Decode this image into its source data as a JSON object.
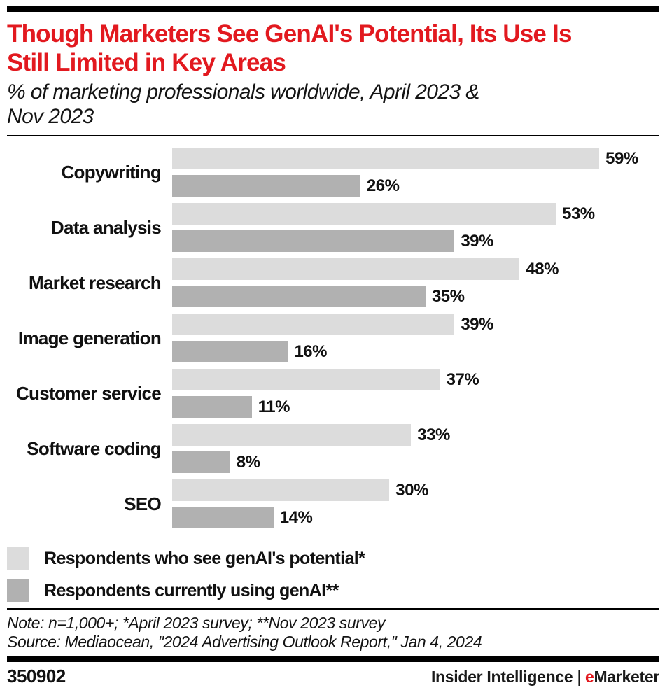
{
  "colors": {
    "accent_red": "#e2191f",
    "bar_light": "#dcdcdc",
    "bar_dark": "#b1b1b1",
    "text": "#111111",
    "rule": "#000000"
  },
  "header": {
    "title_line1": "Though Marketers See GenAI's Potential, Its Use Is",
    "title_line2": "Still Limited in Key Areas",
    "subtitle_line1": "% of marketing professionals worldwide, April 2023 &",
    "subtitle_line2": "Nov 2023"
  },
  "chart_data": {
    "type": "bar",
    "orientation": "horizontal",
    "title": "Though Marketers See GenAI's Potential, Its Use Is Still Limited in Key Areas",
    "subtitle": "% of marketing professionals worldwide, April 2023 & Nov 2023",
    "categories": [
      "Copywriting",
      "Data analysis",
      "Market research",
      "Image generation",
      "Customer service",
      "Software coding",
      "SEO"
    ],
    "series": [
      {
        "name": "Respondents who see genAI's potential*",
        "color": "#dcdcdc",
        "values": [
          59,
          53,
          48,
          39,
          37,
          33,
          30
        ]
      },
      {
        "name": "Respondents currently using genAI**",
        "color": "#b1b1b1",
        "values": [
          26,
          39,
          35,
          16,
          11,
          8,
          14
        ]
      }
    ],
    "value_suffix": "%",
    "xlabel": "",
    "ylabel": "",
    "xmax": 67.3,
    "grid": false,
    "legend_position": "bottom-left",
    "data_labels": true
  },
  "legend": {
    "items": [
      {
        "label": "Respondents who see genAI's potential*",
        "color": "#dcdcdc"
      },
      {
        "label": "Respondents currently using genAI**",
        "color": "#b1b1b1"
      }
    ]
  },
  "notes": {
    "note": "Note: n=1,000+; *April 2023 survey; **Nov 2023 survey",
    "source": "Source: Mediaocean, \"2024 Advertising Outlook Report,\" Jan 4, 2024"
  },
  "footer": {
    "chart_id": "350902",
    "brand_left": "Insider Intelligence",
    "separator": "|",
    "brand_e": "e",
    "brand_rest": "Marketer"
  }
}
